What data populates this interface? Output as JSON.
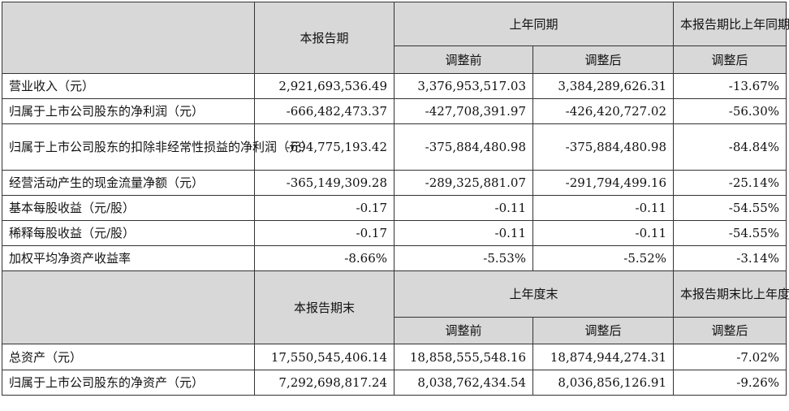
{
  "section1": {
    "header": {
      "current": "本报告期",
      "prior": "上年同期",
      "change": "本报告期比上年同期增减",
      "before_adj": "调整前",
      "after_adj": "调整后",
      "change_after": "调整后"
    },
    "rows": [
      {
        "label": "营业收入（元）",
        "current": "2,921,693,536.49",
        "before": "3,376,953,517.03",
        "after": "3,384,289,626.31",
        "change": "-13.67%"
      },
      {
        "label": "归属于上市公司股东的净利润（元）",
        "current": "-666,482,473.37",
        "before": "-427,708,391.97",
        "after": "-426,420,727.02",
        "change": "-56.30%"
      },
      {
        "label": "归属于上市公司股东的扣除非经常性损益的净利润（元）",
        "current": "-694,775,193.42",
        "before": "-375,884,480.98",
        "after": "-375,884,480.98",
        "change": "-84.84%"
      },
      {
        "label": "经营活动产生的现金流量净额（元）",
        "current": "-365,149,309.28",
        "before": "-289,325,881.07",
        "after": "-291,794,499.16",
        "change": "-25.14%"
      },
      {
        "label": "基本每股收益（元/股）",
        "current": "-0.17",
        "before": "-0.11",
        "after": "-0.11",
        "change": "-54.55%"
      },
      {
        "label": "稀释每股收益（元/股）",
        "current": "-0.17",
        "before": "-0.11",
        "after": "-0.11",
        "change": "-54.55%"
      },
      {
        "label": "加权平均净资产收益率",
        "current": "-8.66%",
        "before": "-5.53%",
        "after": "-5.52%",
        "change": "-3.14%"
      }
    ]
  },
  "section2": {
    "header": {
      "current": "本报告期末",
      "prior": "上年度末",
      "change": "本报告期末比上年度末增减",
      "before_adj": "调整前",
      "after_adj": "调整后",
      "change_after": "调整后"
    },
    "rows": [
      {
        "label": "总资产（元）",
        "current": "17,550,545,406.14",
        "before": "18,858,555,548.16",
        "after": "18,874,944,274.31",
        "change": "-7.02%"
      },
      {
        "label": "归属于上市公司股东的净资产（元）",
        "current": "7,292,698,817.24",
        "before": "8,038,762,434.54",
        "after": "8,036,856,126.91",
        "change": "-9.26%"
      }
    ]
  }
}
